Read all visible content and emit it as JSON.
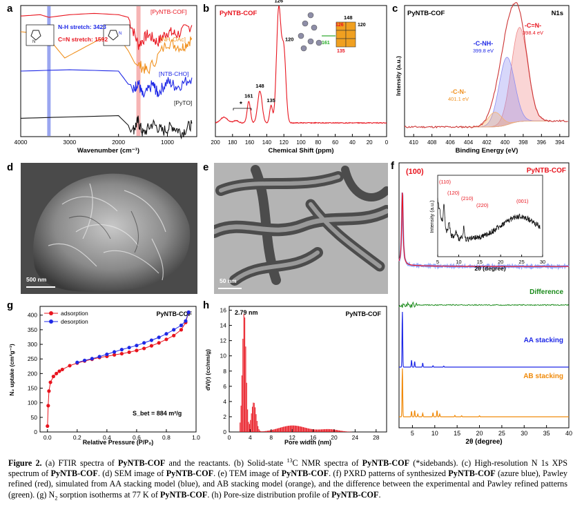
{
  "panel_labels": {
    "a": "a",
    "b": "b",
    "c": "c",
    "d": "d",
    "e": "e",
    "f": "f",
    "g": "g",
    "h": "h"
  },
  "colors": {
    "cof": "#e8141e",
    "nh4oac": "#f0901e",
    "ntb_cho": "#1e28e6",
    "pyto": "#111111",
    "difference": "#1a8a1a",
    "aa": "#1e28e6",
    "ab": "#f08a0a",
    "pawley_exp": "#8ea4ff",
    "band_nh": "#9aa6f0",
    "band_cn": "#f6b4b4"
  },
  "chart_data": [
    {
      "panel": "a",
      "type": "line",
      "xlabel": "Wavenumber (cm⁻¹)",
      "xlim": [
        4000,
        400
      ],
      "ylabel": "",
      "xticks": [
        "4000",
        "3000",
        "2000",
        "1000"
      ],
      "legend": [
        "[PyNTB-COF]",
        "[NH₄OAc]",
        "[NTB-CHO]",
        "[PyTO]"
      ],
      "annotations": [
        "N-H stretch: 3423",
        "C=N stretch: 1592"
      ],
      "series": [
        {
          "name": "[PyNTB-COF]",
          "x": [
            4000,
            3600,
            3423,
            3000,
            2500,
            2000,
            1800,
            1592,
            1400,
            1200,
            1000,
            800,
            500
          ],
          "y": [
            0.92,
            0.93,
            0.91,
            0.93,
            0.94,
            0.93,
            0.91,
            0.7,
            0.78,
            0.72,
            0.8,
            0.78,
            0.85
          ]
        },
        {
          "name": "[NH₄OAc]",
          "x": [
            4000,
            3500,
            3100,
            2800,
            2400,
            2000,
            1600,
            1400,
            1000,
            700,
            500
          ],
          "y": [
            0.8,
            0.78,
            0.6,
            0.66,
            0.74,
            0.76,
            0.55,
            0.5,
            0.72,
            0.68,
            0.75
          ]
        },
        {
          "name": "[NTB-CHO]",
          "x": [
            4000,
            3000,
            2000,
            1700,
            1600,
            1500,
            1300,
            1200,
            1000,
            800,
            500
          ],
          "y": [
            0.5,
            0.51,
            0.5,
            0.35,
            0.42,
            0.3,
            0.4,
            0.33,
            0.42,
            0.38,
            0.45
          ]
        },
        {
          "name": "[PyTO]",
          "x": [
            4000,
            3000,
            2000,
            1700,
            1600,
            1500,
            1300,
            1100,
            900,
            700,
            500
          ],
          "y": [
            0.14,
            0.15,
            0.16,
            0.05,
            0.12,
            0.02,
            0.1,
            0.04,
            0.08,
            0.03,
            0.1
          ]
        }
      ]
    },
    {
      "panel": "b",
      "type": "line",
      "title": "PyNTB-COF",
      "xlabel": "Chemical Shift  (ppm)",
      "xlim": [
        200,
        0
      ],
      "xticks": [
        "200",
        "180",
        "160",
        "140",
        "120",
        "100",
        "80",
        "60",
        "40",
        "20",
        "0"
      ],
      "peaks": [
        {
          "x": 161,
          "label": "161"
        },
        {
          "x": 148,
          "label": "148"
        },
        {
          "x": 135,
          "label": "135"
        },
        {
          "x": 126,
          "label": "126"
        },
        {
          "x": 120,
          "label": "120"
        }
      ],
      "sideband_mark": "*",
      "structure_labels": [
        "148",
        "126",
        "120",
        "161",
        "135"
      ]
    },
    {
      "panel": "c",
      "type": "line",
      "title": "PyNTB-COF",
      "tag": "N1s",
      "xlabel": "Binding Energy (eV)",
      "ylabel": "Intensity (a.u.)",
      "xlim": [
        411,
        393
      ],
      "xticks": [
        "410",
        "408",
        "406",
        "404",
        "402",
        "400",
        "398",
        "396",
        "394"
      ],
      "components": [
        {
          "name": "-C=N-",
          "energy": "398.4 eV",
          "center": 398.4
        },
        {
          "name": "-C-NH-",
          "energy": "399.8 eV",
          "center": 399.8
        },
        {
          "name": "-C-N-",
          "energy": "401.1 eV",
          "center": 401.1
        }
      ]
    },
    {
      "panel": "f",
      "type": "line",
      "title": "PyNTB-COF",
      "xlabel": "2θ (degree)",
      "xlim": [
        2,
        40
      ],
      "xticks": [
        "5",
        "10",
        "15",
        "20",
        "25",
        "30",
        "35",
        "40"
      ],
      "peak_label": "(100)",
      "traces": [
        "Difference",
        "AA stacking",
        "AB stacking"
      ],
      "inset": {
        "xlabel": "2θ (degree)",
        "ylabel": "Intensity (a.u.)",
        "xlim": [
          5,
          30
        ],
        "xticks": [
          "5",
          "10",
          "15",
          "20",
          "25",
          "30"
        ],
        "peaks": [
          "(110)",
          "(120)",
          "(210)",
          "(220)",
          "(001)"
        ]
      }
    },
    {
      "panel": "g",
      "type": "line",
      "title": "PyNTB-COF",
      "xlabel": "Relative Pressure (P/P₀)",
      "ylabel": "N₂ uptake (cm³g⁻¹)",
      "xlim": [
        -0.05,
        1.0
      ],
      "ylim": [
        0,
        430
      ],
      "xticks": [
        "0.0",
        "0.2",
        "0.4",
        "0.6",
        "0.8",
        "1.0"
      ],
      "yticks": [
        "0",
        "50",
        "100",
        "150",
        "200",
        "250",
        "300",
        "350",
        "400"
      ],
      "annotation": "S_bet = 884 m²/g",
      "series": [
        {
          "name": "adsorption",
          "x": [
            0.0,
            0.005,
            0.01,
            0.02,
            0.04,
            0.06,
            0.08,
            0.1,
            0.15,
            0.2,
            0.25,
            0.3,
            0.35,
            0.4,
            0.45,
            0.5,
            0.55,
            0.6,
            0.65,
            0.7,
            0.75,
            0.8,
            0.85,
            0.9,
            0.93,
            0.95
          ],
          "y": [
            20,
            90,
            140,
            170,
            190,
            200,
            208,
            214,
            227,
            236,
            243,
            249,
            255,
            259,
            264,
            268,
            273,
            279,
            286,
            295,
            305,
            317,
            330,
            350,
            375,
            410
          ]
        },
        {
          "name": "desorption",
          "x": [
            0.95,
            0.93,
            0.9,
            0.85,
            0.8,
            0.75,
            0.7,
            0.65,
            0.6,
            0.55,
            0.5,
            0.45,
            0.4,
            0.35,
            0.3,
            0.25,
            0.2
          ],
          "y": [
            410,
            380,
            365,
            350,
            336,
            324,
            314,
            305,
            296,
            289,
            282,
            274,
            266,
            258,
            251,
            245,
            238
          ]
        }
      ]
    },
    {
      "panel": "h",
      "type": "bar",
      "title": "PyNTB-COF",
      "peak_label": "2.79 nm",
      "xlabel": "Pore width (nm)",
      "ylabel": "dV(r) (cc/nm/g)",
      "xlim": [
        0,
        30
      ],
      "ylim": [
        0,
        16.5
      ],
      "xticks": [
        "0",
        "4",
        "8",
        "12",
        "16",
        "20",
        "24",
        "28"
      ],
      "yticks": [
        "0",
        "2",
        "4",
        "6",
        "8",
        "10",
        "12",
        "14",
        "16"
      ]
    }
  ],
  "scale_bars": {
    "d": "500 nm",
    "e": "50 nm"
  },
  "caption": {
    "fig": "Figure 2.",
    "t1": " (a) FTIR spectra of ",
    "cof": "PyNTB-COF",
    "t2": " and the reactants. (b) Solid-state ",
    "sup13": "13",
    "t3": "C NMR spectra of ",
    "t4": " (*sidebands). (c) High-resolution N 1s XPS spectrum of ",
    "t5": ". (d) SEM image of ",
    "t6": ". (e) TEM image of ",
    "t7": ". (f) PXRD patterns of synthesized ",
    "t8": " (azure blue), Pawley refined (red), simulated from AA stacking model (blue), and AB stacking model (orange), and the difference between the experimental and Pawley refined patterns (green). (g) N",
    "sub2": "2",
    "t9": " sorption isotherms at 77 K of ",
    "t10": ". (h) Pore-size distribution profile of ",
    "t11": "."
  }
}
